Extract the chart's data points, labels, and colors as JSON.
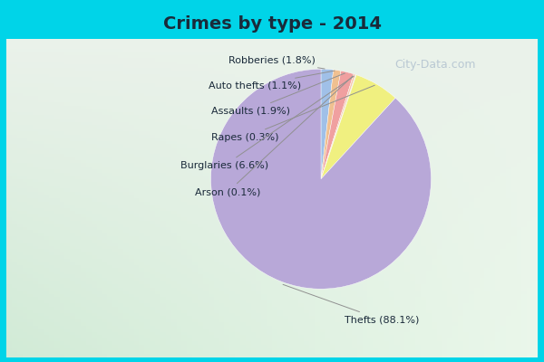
{
  "title": "Crimes by type - 2014",
  "labels": [
    "Thefts",
    "Burglaries",
    "Assaults",
    "Robberies",
    "Auto thefts",
    "Rapes",
    "Arson"
  ],
  "values": [
    88.1,
    6.6,
    1.9,
    1.8,
    1.1,
    0.3,
    0.1
  ],
  "colors": [
    "#b8a8d8",
    "#f5f5a0",
    "#c8b8e8",
    "#f0c8a0",
    "#a8b8e0",
    "#f0d0c0",
    "#d0e8d0"
  ],
  "startangle": 97,
  "title_color": "#1a2a3a",
  "label_color": "#1a2a3a",
  "line_color": "#909090",
  "watermark": "City-Data.com",
  "watermark_color": "#aabbcc",
  "label_texts": [
    "Thefts (88.1%)",
    "Burglaries (6.6%)",
    "Assaults (1.9%)",
    "Robberies (1.8%)",
    "Auto thefts (1.1%)",
    "Rapes (0.3%)",
    "Arson (0.1%)"
  ]
}
